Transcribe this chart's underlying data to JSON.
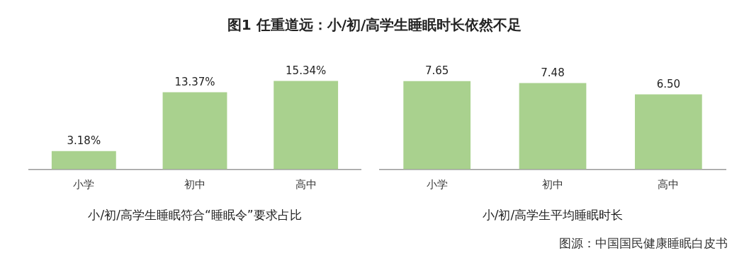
{
  "chart_data": [
    {
      "type": "bar",
      "title": "图1 任重道远：小/初/高学生睡眠时长依然不足",
      "xlabel": "小/初/高学生睡眠符合“睡眠令”要求占比",
      "categories": [
        "小学",
        "初中",
        "高中"
      ],
      "values": [
        3.18,
        13.37,
        15.34
      ],
      "value_labels": [
        "3.18%",
        "13.37%",
        "15.34%"
      ],
      "color": "#a9d18e",
      "grid": false,
      "legend": false
    },
    {
      "type": "bar",
      "xlabel": "小/初/高学生平均睡眠时长",
      "categories": [
        "小学",
        "初中",
        "高中"
      ],
      "values": [
        7.65,
        7.48,
        6.5
      ],
      "value_labels": [
        "7.65",
        "7.48",
        "6.50"
      ],
      "color": "#a9d18e",
      "grid": false,
      "legend": false,
      "annotations": [
        "图源：中国国民健康睡眠白皮书"
      ]
    }
  ]
}
